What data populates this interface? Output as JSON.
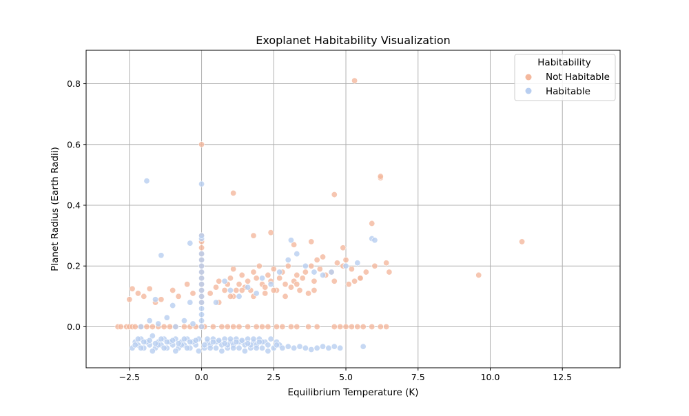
{
  "chart_data": {
    "type": "scatter",
    "title": "Exoplanet Habitability Visualization",
    "xlabel": "Equilibrium Temperature (K)",
    "ylabel": "Planet Radius (Earth Radii)",
    "xlim": [
      -4.0,
      14.5
    ],
    "ylim": [
      -0.135,
      0.91
    ],
    "xticks": [
      -2.5,
      0.0,
      2.5,
      5.0,
      7.5,
      10.0,
      12.5
    ],
    "xtick_labels": [
      "−2.5",
      "0.0",
      "2.5",
      "5.0",
      "7.5",
      "10.0",
      "12.5"
    ],
    "yticks": [
      0.0,
      0.2,
      0.4,
      0.6,
      0.8
    ],
    "ytick_labels": [
      "0.0",
      "0.2",
      "0.4",
      "0.6",
      "0.8"
    ],
    "grid": true,
    "legend": {
      "title": "Habitability",
      "placement": "top-right",
      "entries": [
        "Not Habitable",
        "Habitable"
      ]
    },
    "series": [
      {
        "name": "Not Habitable",
        "color": "#f4b89d",
        "x": [
          -2.9,
          -2.8,
          -2.6,
          -2.5,
          -2.4,
          -2.3,
          -2.1,
          -1.9,
          -1.7,
          -1.5,
          -1.3,
          -1.1,
          -0.9,
          -0.6,
          -0.4,
          -0.2,
          0.0,
          0.1,
          0.4,
          0.7,
          0.9,
          1.1,
          1.3,
          1.6,
          1.9,
          2.1,
          2.3,
          2.6,
          2.8,
          3.1,
          3.3,
          3.7,
          4.0,
          4.6,
          4.8,
          5.0,
          5.2,
          5.4,
          5.6,
          5.9,
          6.2,
          6.4,
          -2.5,
          -2.4,
          -2.2,
          -2.0,
          -1.8,
          -1.6,
          -1.4,
          -1.0,
          -0.8,
          -0.5,
          -0.3,
          0.0,
          0.0,
          0.0,
          0.0,
          0.0,
          0.0,
          0.0,
          0.0,
          0.0,
          0.0,
          0.0,
          0.0,
          0.3,
          0.5,
          0.6,
          0.8,
          0.9,
          1.0,
          1.1,
          1.2,
          1.3,
          1.4,
          1.5,
          1.6,
          1.7,
          1.8,
          1.9,
          2.0,
          2.1,
          2.2,
          2.3,
          2.4,
          2.5,
          2.6,
          2.7,
          2.8,
          2.9,
          3.0,
          3.1,
          3.2,
          3.3,
          3.4,
          3.5,
          3.6,
          3.7,
          3.8,
          3.9,
          4.0,
          4.1,
          4.2,
          4.3,
          4.5,
          4.7,
          4.9,
          5.0,
          5.2,
          5.3,
          5.5,
          5.7,
          6.0,
          6.4,
          0.6,
          1.0,
          1.4,
          1.8,
          2.2,
          2.5,
          2.9,
          3.3,
          3.9,
          4.6,
          5.1,
          5.5,
          1.1,
          1.8,
          2.4,
          3.2,
          3.8,
          4.9,
          5.9,
          6.2,
          6.5,
          0.0,
          1.1,
          4.6,
          5.3,
          6.2,
          9.6,
          11.1
        ],
        "y": [
          0.0,
          0.0,
          0.0,
          0.0,
          0.0,
          0.0,
          0.0,
          0.0,
          0.0,
          0.0,
          0.0,
          0.0,
          0.0,
          0.0,
          0.0,
          0.0,
          0.0,
          0.0,
          0.0,
          0.0,
          0.0,
          0.0,
          0.0,
          0.0,
          0.0,
          0.0,
          0.0,
          0.0,
          0.0,
          0.0,
          0.0,
          0.0,
          0.0,
          0.0,
          0.0,
          0.0,
          0.0,
          0.0,
          0.0,
          0.0,
          0.0,
          0.0,
          0.09,
          0.125,
          0.11,
          0.1,
          0.125,
          0.08,
          0.09,
          0.12,
          0.1,
          0.14,
          0.11,
          0.3,
          0.28,
          0.26,
          0.24,
          0.22,
          0.2,
          0.18,
          0.16,
          0.14,
          0.12,
          0.1,
          0.08,
          0.11,
          0.13,
          0.15,
          0.12,
          0.14,
          0.16,
          0.1,
          0.12,
          0.14,
          0.17,
          0.13,
          0.15,
          0.12,
          0.18,
          0.16,
          0.2,
          0.14,
          0.13,
          0.17,
          0.15,
          0.19,
          0.12,
          0.16,
          0.18,
          0.14,
          0.2,
          0.13,
          0.15,
          0.17,
          0.12,
          0.16,
          0.18,
          0.11,
          0.2,
          0.15,
          0.22,
          0.19,
          0.23,
          0.17,
          0.18,
          0.21,
          0.2,
          0.22,
          0.19,
          0.15,
          0.16,
          0.18,
          0.2,
          0.21,
          0.08,
          0.1,
          0.12,
          0.1,
          0.11,
          0.12,
          0.1,
          0.14,
          0.12,
          0.15,
          0.14,
          0.16,
          0.19,
          0.3,
          0.31,
          0.27,
          0.28,
          0.26,
          0.34,
          0.49,
          0.18,
          0.6,
          0.44,
          0.435,
          0.81,
          0.495,
          0.17,
          0.28
        ]
      },
      {
        "name": "Habitable",
        "color": "#b8cef0",
        "x": [
          -2.4,
          -2.3,
          -2.2,
          -2.1,
          -2.0,
          -1.9,
          -1.8,
          -1.7,
          -1.6,
          -1.5,
          -1.4,
          -1.3,
          -1.2,
          -1.1,
          -1.0,
          -0.9,
          -0.8,
          -0.7,
          -0.6,
          -0.5,
          -0.4,
          -0.3,
          -0.2,
          -0.1,
          0.1,
          0.2,
          0.3,
          0.4,
          0.5,
          0.6,
          0.7,
          0.8,
          0.9,
          1.0,
          1.1,
          1.2,
          1.3,
          1.4,
          1.5,
          1.6,
          1.7,
          1.8,
          1.9,
          2.0,
          2.1,
          2.2,
          2.3,
          2.4,
          2.5,
          2.6,
          2.7,
          2.8,
          3.0,
          3.2,
          3.4,
          3.6,
          3.8,
          4.0,
          4.2,
          4.4,
          4.6,
          4.8,
          5.6,
          -2.3,
          -2.1,
          -1.9,
          -1.7,
          -1.5,
          -1.3,
          -1.1,
          -0.9,
          -0.7,
          -0.5,
          -0.3,
          -0.1,
          0.1,
          0.3,
          0.5,
          0.7,
          0.9,
          1.1,
          1.3,
          1.5,
          1.7,
          1.9,
          2.1,
          2.3,
          2.6,
          -2.2,
          -2.0,
          -1.8,
          -1.6,
          -1.4,
          -1.2,
          -1.0,
          -0.8,
          -0.6,
          -0.4,
          -0.2,
          0.2,
          0.4,
          0.6,
          0.8,
          1.0,
          1.2,
          1.4,
          1.6,
          1.8,
          2.0,
          0.0,
          0.0,
          0.0,
          0.0,
          0.0,
          0.0,
          0.0,
          0.0,
          0.0,
          0.0,
          0.0,
          0.0,
          0.0,
          0.0,
          -1.8,
          -1.5,
          -1.2,
          -0.9,
          -0.6,
          -0.3,
          -2.1,
          -1.6,
          -1.0,
          -0.4,
          0.5,
          0.8,
          1.0,
          1.3,
          1.6,
          1.9,
          2.1,
          2.4,
          2.7,
          3.0,
          3.3,
          3.6,
          3.9,
          4.2,
          4.5,
          5.0,
          5.4,
          5.9,
          -1.9,
          -0.4,
          0.0,
          -1.4,
          0.0,
          6.0,
          3.1
        ],
        "y": [
          -0.07,
          -0.05,
          -0.06,
          -0.04,
          -0.07,
          -0.05,
          -0.06,
          -0.03,
          -0.07,
          -0.05,
          -0.06,
          -0.04,
          -0.07,
          -0.05,
          -0.06,
          -0.04,
          -0.07,
          -0.05,
          -0.06,
          -0.04,
          -0.07,
          -0.05,
          -0.06,
          -0.04,
          -0.07,
          -0.05,
          -0.06,
          -0.04,
          -0.07,
          -0.05,
          -0.06,
          -0.04,
          -0.07,
          -0.05,
          -0.06,
          -0.04,
          -0.07,
          -0.05,
          -0.06,
          -0.04,
          -0.07,
          -0.05,
          -0.06,
          -0.04,
          -0.07,
          -0.05,
          -0.06,
          -0.04,
          -0.07,
          -0.05,
          -0.06,
          -0.07,
          -0.065,
          -0.07,
          -0.065,
          -0.07,
          -0.075,
          -0.07,
          -0.065,
          -0.07,
          -0.065,
          -0.07,
          -0.065,
          -0.06,
          -0.07,
          -0.05,
          -0.08,
          -0.06,
          -0.07,
          -0.05,
          -0.08,
          -0.06,
          -0.07,
          -0.05,
          -0.08,
          -0.06,
          -0.07,
          -0.05,
          -0.08,
          -0.06,
          -0.07,
          -0.05,
          -0.08,
          -0.06,
          -0.07,
          -0.05,
          -0.08,
          -0.06,
          -0.04,
          -0.05,
          -0.045,
          -0.055,
          -0.04,
          -0.05,
          -0.045,
          -0.055,
          -0.04,
          -0.05,
          -0.045,
          -0.04,
          -0.05,
          -0.045,
          -0.055,
          -0.04,
          -0.05,
          -0.045,
          -0.055,
          -0.04,
          -0.05,
          0.0,
          0.02,
          0.04,
          0.06,
          0.08,
          0.1,
          0.12,
          0.14,
          0.16,
          0.18,
          0.2,
          0.22,
          0.24,
          0.29,
          0.02,
          0.01,
          0.03,
          0.0,
          0.02,
          0.01,
          0.0,
          0.09,
          0.07,
          0.08,
          0.08,
          0.15,
          0.12,
          0.1,
          0.13,
          0.11,
          0.16,
          0.14,
          0.18,
          0.22,
          0.24,
          0.2,
          0.18,
          0.17,
          0.18,
          0.2,
          0.21,
          0.29,
          0.48,
          0.275,
          0.47,
          0.235,
          0.3,
          0.285,
          0.285
        ]
      }
    ]
  }
}
